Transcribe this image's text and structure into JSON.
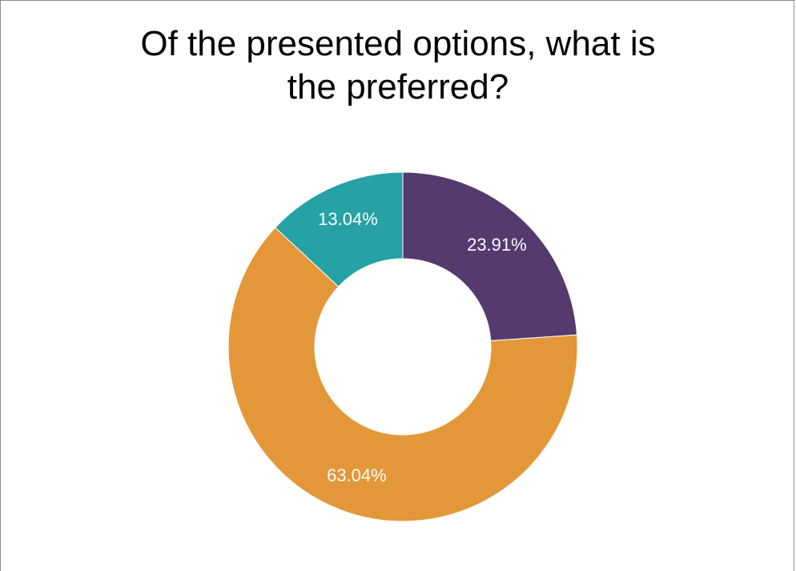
{
  "chart_data": {
    "type": "pie",
    "title": "Of the presented options, what is the preferred?",
    "title_lines": [
      "Of the presented options, what is",
      "the preferred?"
    ],
    "donut": true,
    "legend": "none",
    "slices": [
      {
        "value": 23.91,
        "label": "23.91%",
        "color": "#553a6f"
      },
      {
        "value": 63.04,
        "label": "63.04%",
        "color": "#e39739"
      },
      {
        "value": 13.04,
        "label": "13.04%",
        "color": "#26a1a6"
      }
    ]
  }
}
